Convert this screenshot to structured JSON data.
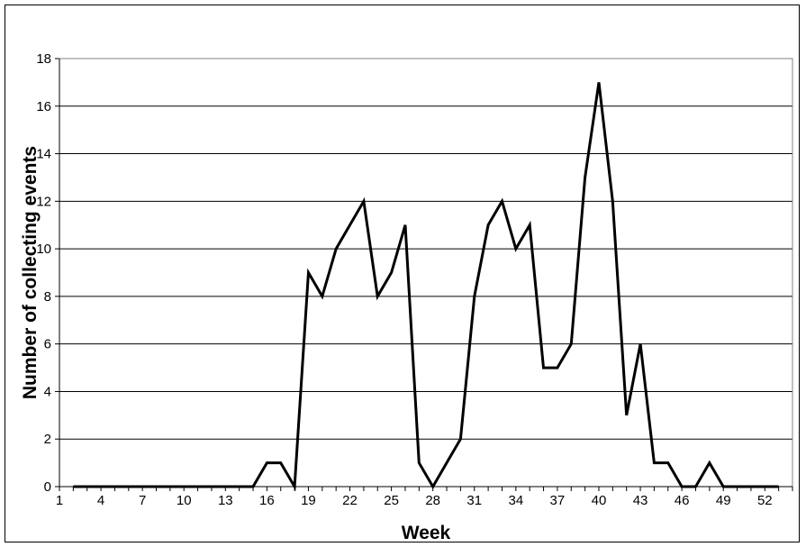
{
  "chart_data": {
    "type": "line",
    "title": "",
    "xlabel": "Week",
    "ylabel": "Number of collecting events",
    "x_tick_labels": [
      "1",
      "4",
      "7",
      "10",
      "13",
      "16",
      "19",
      "22",
      "25",
      "28",
      "31",
      "34",
      "37",
      "40",
      "43",
      "46",
      "49",
      "52"
    ],
    "ylim": [
      0,
      18
    ],
    "y_ticks": [
      0,
      2,
      4,
      6,
      8,
      10,
      12,
      14,
      16,
      18
    ],
    "grid": "horizontal",
    "line_color": "#000000",
    "series": [
      {
        "x": [
          2,
          3,
          4,
          5,
          6,
          7,
          8,
          9,
          10,
          11,
          12,
          13,
          14,
          15,
          16,
          17,
          18,
          19,
          20,
          21,
          22,
          23,
          24,
          25,
          26,
          27,
          28,
          29,
          30,
          31,
          32,
          33,
          34,
          35,
          36,
          37,
          38,
          39,
          40,
          41,
          42,
          43,
          44,
          45,
          46,
          47,
          48,
          49,
          50,
          51,
          52,
          53
        ],
        "values": [
          0,
          0,
          0,
          0,
          0,
          0,
          0,
          0,
          0,
          0,
          0,
          0,
          0,
          0,
          1,
          1,
          0,
          9,
          8,
          10,
          11,
          12,
          8,
          9,
          11,
          1,
          0,
          1,
          2,
          8,
          11,
          12,
          10,
          11,
          5,
          5,
          6,
          13,
          17,
          12,
          3,
          6,
          1,
          1,
          0,
          0,
          1,
          0,
          0,
          0,
          0,
          0
        ]
      }
    ]
  }
}
